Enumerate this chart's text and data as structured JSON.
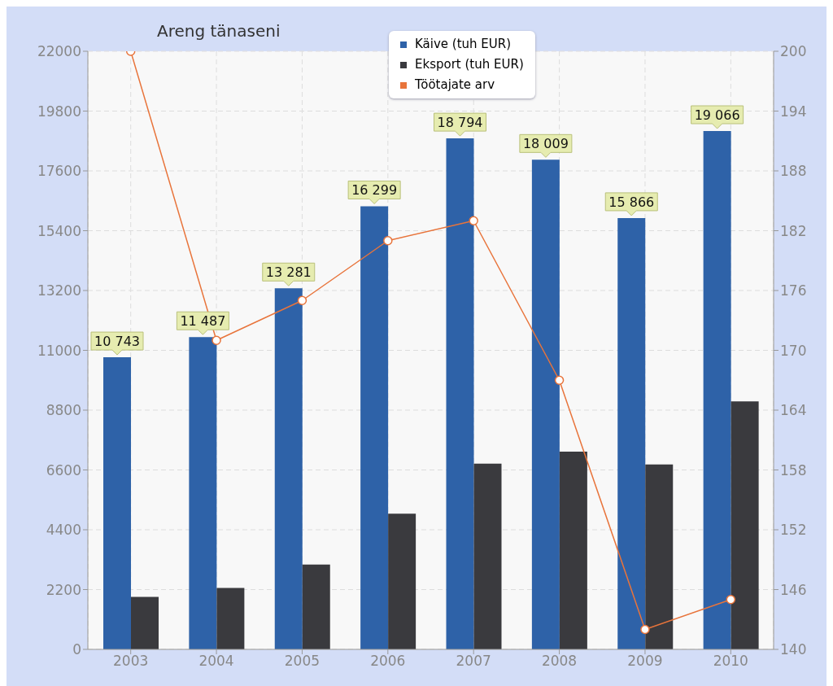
{
  "chart_data": {
    "type": "bar",
    "title": "Areng tänaseni",
    "categories": [
      "2003",
      "2004",
      "2005",
      "2006",
      "2007",
      "2008",
      "2009",
      "2010"
    ],
    "series": [
      {
        "name": "Käive (tuh EUR)",
        "color": "#2e62a8",
        "values": [
          10743,
          11487,
          13281,
          16299,
          18794,
          18009,
          15866,
          19066
        ],
        "value_labels": [
          "10 743",
          "11 487",
          "13 281",
          "16 299",
          "18 794",
          "18 009",
          "15 866",
          "19 066"
        ]
      },
      {
        "name": "Eksport (tuh EUR)",
        "color": "#3a3a3e",
        "values": [
          1930,
          2260,
          3120,
          4990,
          6830,
          7270,
          6800,
          9120
        ]
      },
      {
        "name": "Töötajate arv",
        "type": "line",
        "axis": "y2",
        "color": "#e8743b",
        "marker": "circle",
        "values": [
          200,
          171,
          175,
          181,
          183,
          167,
          142,
          145
        ]
      }
    ],
    "ylim": [
      0,
      22000
    ],
    "yticks": [
      0,
      2200,
      4400,
      6600,
      8800,
      11000,
      13200,
      15400,
      17600,
      19800,
      22000
    ],
    "y2lim": [
      140,
      200
    ],
    "y2ticks": [
      140,
      146,
      152,
      158,
      164,
      170,
      176,
      182,
      188,
      194,
      200
    ],
    "grid": true,
    "legend": "top"
  }
}
